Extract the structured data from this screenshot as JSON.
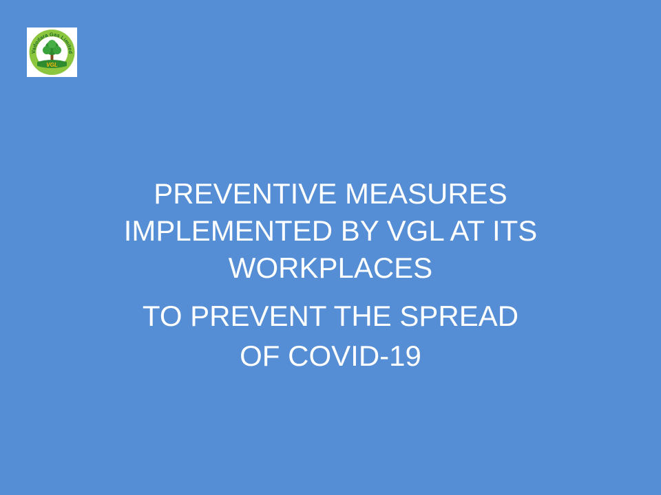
{
  "logo": {
    "name": "Vadodara Gas Limited",
    "initials": "VGL"
  },
  "title": {
    "line1": "PREVENTIVE MEASURES",
    "line2": "IMPLEMENTED BY VGL AT ITS",
    "line3": "WORKPLACES",
    "line4": "TO PREVENT THE SPREAD",
    "line5": "OF COVID-19"
  },
  "colors": {
    "background": "#568ED6",
    "text": "#ffffff"
  }
}
